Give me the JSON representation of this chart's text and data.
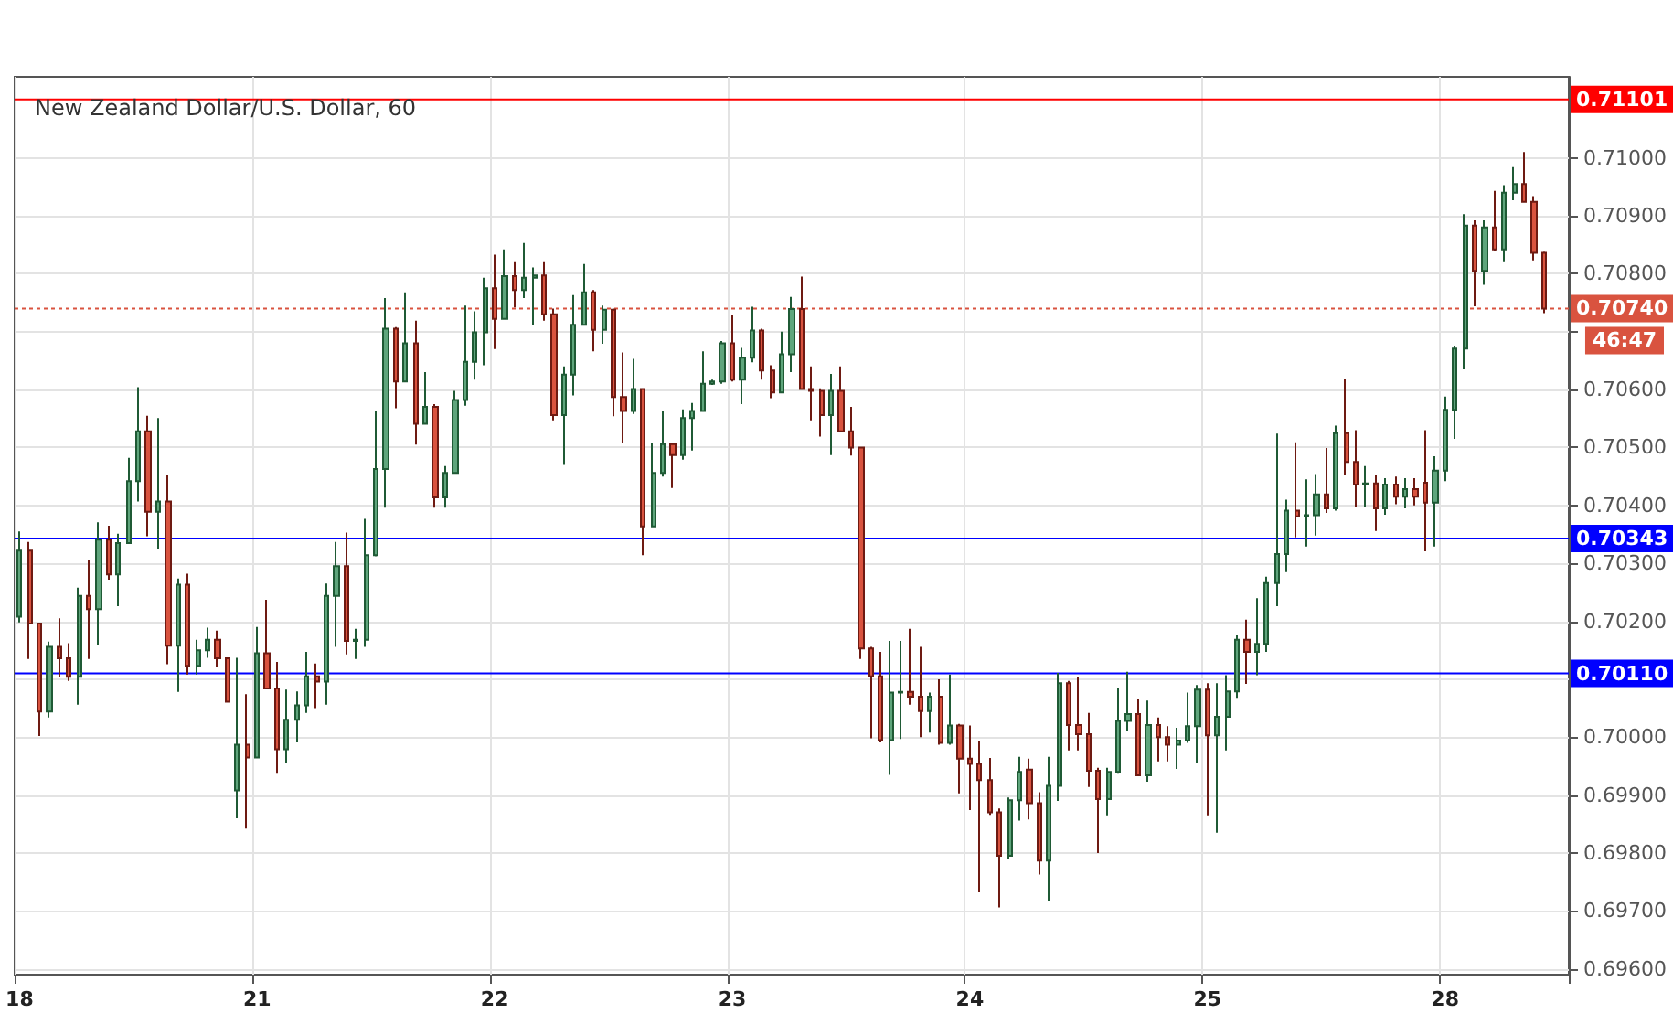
{
  "chart_data": {
    "type": "candlestick",
    "title": "New Zealand Dollar/U.S. Dollar, 60",
    "categories": [
      "18",
      null,
      null,
      null,
      null,
      null,
      null,
      null,
      null,
      null,
      null,
      null,
      null,
      null,
      null,
      null,
      null,
      null,
      null,
      null,
      null,
      null,
      null,
      null,
      "21",
      null,
      null,
      null,
      null,
      null,
      null,
      null,
      null,
      null,
      null,
      null,
      null,
      null,
      null,
      null,
      null,
      null,
      null,
      null,
      null,
      null,
      null,
      null,
      "22",
      null,
      null,
      null,
      null,
      null,
      null,
      null,
      null,
      null,
      null,
      null,
      null,
      null,
      null,
      null,
      null,
      null,
      null,
      null,
      null,
      null,
      null,
      null,
      "23",
      null,
      null,
      null,
      null,
      null,
      null,
      null,
      null,
      null,
      null,
      null,
      null,
      null,
      null,
      null,
      null,
      null,
      null,
      null,
      null,
      null,
      null,
      null,
      "24",
      null,
      null,
      null,
      null,
      null,
      null,
      null,
      null,
      null,
      null,
      null,
      null,
      null,
      null,
      null,
      null,
      null,
      null,
      null,
      null,
      null,
      null,
      null,
      "25",
      null,
      null,
      null,
      null,
      null,
      null,
      null,
      null,
      null,
      null,
      null,
      null,
      null,
      null,
      null,
      null,
      null,
      null,
      null,
      null,
      null,
      null,
      null,
      "28",
      null,
      null,
      null,
      null,
      null,
      null,
      null,
      null,
      null,
      null
    ],
    "ohlc": [
      [
        0.70208,
        0.70355,
        0.70198,
        0.70322
      ],
      [
        0.70322,
        0.70337,
        0.70135,
        0.70196
      ],
      [
        0.70196,
        0.70196,
        0.70002,
        0.70044
      ],
      [
        0.70044,
        0.70165,
        0.70034,
        0.70156
      ],
      [
        0.70156,
        0.70205,
        0.70104,
        0.70136
      ],
      [
        0.70136,
        0.70162,
        0.70097,
        0.70104
      ],
      [
        0.70104,
        0.70258,
        0.70056,
        0.70244
      ],
      [
        0.70244,
        0.70305,
        0.70135,
        0.70221
      ],
      [
        0.70221,
        0.70371,
        0.7016,
        0.70341
      ],
      [
        0.70341,
        0.70365,
        0.70272,
        0.70281
      ],
      [
        0.70281,
        0.70351,
        0.70226,
        0.70335
      ],
      [
        0.70335,
        0.70482,
        0.70335,
        0.70442
      ],
      [
        0.70442,
        0.70604,
        0.70407,
        0.70528
      ],
      [
        0.70528,
        0.70555,
        0.70347,
        0.70389
      ],
      [
        0.70389,
        0.70551,
        0.70324,
        0.70407
      ],
      [
        0.70407,
        0.70453,
        0.70126,
        0.70158
      ],
      [
        0.70158,
        0.70274,
        0.70078,
        0.70263
      ],
      [
        0.70263,
        0.70282,
        0.70108,
        0.70123
      ],
      [
        0.70123,
        0.70168,
        0.70108,
        0.7015
      ],
      [
        0.7015,
        0.70189,
        0.70137,
        0.70168
      ],
      [
        0.70168,
        0.70184,
        0.70121,
        0.70136
      ],
      [
        0.70136,
        0.70136,
        0.70061,
        0.70061
      ],
      [
        0.69908,
        0.70137,
        0.6986,
        0.69987
      ],
      [
        0.69987,
        0.70074,
        0.69842,
        0.69965
      ],
      [
        0.69965,
        0.7019,
        0.69965,
        0.70145
      ],
      [
        0.70145,
        0.70237,
        0.70084,
        0.70084
      ],
      [
        0.70084,
        0.7013,
        0.69937,
        0.69979
      ],
      [
        0.69979,
        0.70082,
        0.69956,
        0.7003
      ],
      [
        0.7003,
        0.70079,
        0.69991,
        0.70055
      ],
      [
        0.70055,
        0.70147,
        0.70042,
        0.70105
      ],
      [
        0.70105,
        0.70127,
        0.7005,
        0.70096
      ],
      [
        0.70096,
        0.70265,
        0.70056,
        0.70244
      ],
      [
        0.70244,
        0.70337,
        0.70156,
        0.70295
      ],
      [
        0.70295,
        0.70353,
        0.70143,
        0.70166
      ],
      [
        0.70166,
        0.70187,
        0.70135,
        0.70168
      ],
      [
        0.70168,
        0.70377,
        0.70156,
        0.70314
      ],
      [
        0.70314,
        0.70564,
        0.70312,
        0.70463
      ],
      [
        0.70463,
        0.70758,
        0.70396,
        0.70705
      ],
      [
        0.70705,
        0.70708,
        0.70568,
        0.70614
      ],
      [
        0.70614,
        0.70768,
        0.70614,
        0.7068
      ],
      [
        0.7068,
        0.70719,
        0.70505,
        0.70541
      ],
      [
        0.70541,
        0.7063,
        0.70541,
        0.7057
      ],
      [
        0.7057,
        0.70575,
        0.70396,
        0.70414
      ],
      [
        0.70414,
        0.70468,
        0.70396,
        0.70456
      ],
      [
        0.70456,
        0.70598,
        0.70456,
        0.70582
      ],
      [
        0.70582,
        0.70745,
        0.70572,
        0.70648
      ],
      [
        0.70648,
        0.70735,
        0.70617,
        0.70699
      ],
      [
        0.70699,
        0.70793,
        0.70642,
        0.70775
      ],
      [
        0.70775,
        0.70833,
        0.7067,
        0.70722
      ],
      [
        0.70722,
        0.70842,
        0.70722,
        0.70796
      ],
      [
        0.70796,
        0.7082,
        0.70742,
        0.70772
      ],
      [
        0.70772,
        0.70853,
        0.70758,
        0.70793
      ],
      [
        0.70793,
        0.70811,
        0.70712,
        0.70797
      ],
      [
        0.70797,
        0.7082,
        0.70719,
        0.7073
      ],
      [
        0.7073,
        0.7074,
        0.70547,
        0.70556
      ],
      [
        0.70556,
        0.7064,
        0.7047,
        0.70626
      ],
      [
        0.70626,
        0.70763,
        0.7059,
        0.70712
      ],
      [
        0.70712,
        0.70817,
        0.70712,
        0.70768
      ],
      [
        0.70768,
        0.70772,
        0.70666,
        0.70703
      ],
      [
        0.70703,
        0.70745,
        0.70679,
        0.70738
      ],
      [
        0.70738,
        0.7074,
        0.70554,
        0.70587
      ],
      [
        0.70587,
        0.70664,
        0.70508,
        0.70563
      ],
      [
        0.70563,
        0.70653,
        0.70558,
        0.70601
      ],
      [
        0.70601,
        0.70601,
        0.70314,
        0.70364
      ],
      [
        0.70364,
        0.70508,
        0.70364,
        0.70456
      ],
      [
        0.70456,
        0.70564,
        0.7045,
        0.70506
      ],
      [
        0.70506,
        0.70506,
        0.7043,
        0.70487
      ],
      [
        0.70487,
        0.70566,
        0.70479,
        0.70551
      ],
      [
        0.70551,
        0.70577,
        0.70495,
        0.70563
      ],
      [
        0.70563,
        0.70666,
        0.70563,
        0.7061
      ],
      [
        0.7061,
        0.70617,
        0.70608,
        0.70614
      ],
      [
        0.70614,
        0.70684,
        0.7061,
        0.7068
      ],
      [
        0.7068,
        0.70729,
        0.70614,
        0.70617
      ],
      [
        0.70617,
        0.70672,
        0.70575,
        0.70655
      ],
      [
        0.70655,
        0.70743,
        0.70647,
        0.70702
      ],
      [
        0.70702,
        0.70705,
        0.70617,
        0.70633
      ],
      [
        0.70633,
        0.70642,
        0.70585,
        0.70595
      ],
      [
        0.70595,
        0.707,
        0.70595,
        0.70661
      ],
      [
        0.70661,
        0.7076,
        0.7063,
        0.70739
      ],
      [
        0.70739,
        0.70795,
        0.70601,
        0.70601
      ],
      [
        0.70601,
        0.7064,
        0.70547,
        0.70598
      ],
      [
        0.70598,
        0.70602,
        0.70519,
        0.70556
      ],
      [
        0.70556,
        0.70627,
        0.70487,
        0.70598
      ],
      [
        0.70598,
        0.7064,
        0.70528,
        0.70528
      ],
      [
        0.70528,
        0.7057,
        0.70486,
        0.705
      ],
      [
        0.705,
        0.705,
        0.70135,
        0.70153
      ],
      [
        0.70153,
        0.70156,
        0.69998,
        0.70105
      ],
      [
        0.70105,
        0.70147,
        0.69991,
        0.69995
      ],
      [
        0.69995,
        0.70166,
        0.69935,
        0.70077
      ],
      [
        0.70077,
        0.70166,
        0.69997,
        0.70078
      ],
      [
        0.70078,
        0.70187,
        0.70056,
        0.7007
      ],
      [
        0.7007,
        0.70156,
        0.7,
        0.70045
      ],
      [
        0.70045,
        0.70077,
        0.70008,
        0.7007
      ],
      [
        0.7007,
        0.701,
        0.69987,
        0.6999
      ],
      [
        0.6999,
        0.70108,
        0.69987,
        0.7002
      ],
      [
        0.7002,
        0.70023,
        0.69903,
        0.69963
      ],
      [
        0.69963,
        0.7002,
        0.69874,
        0.69954
      ],
      [
        0.69954,
        0.69993,
        0.69732,
        0.69926
      ],
      [
        0.69926,
        0.69964,
        0.69866,
        0.6987
      ],
      [
        0.6987,
        0.69877,
        0.69706,
        0.69795
      ],
      [
        0.69795,
        0.69896,
        0.6979,
        0.69891
      ],
      [
        0.69891,
        0.69966,
        0.69856,
        0.6994
      ],
      [
        0.69944,
        0.69963,
        0.69858,
        0.69886
      ],
      [
        0.69886,
        0.69905,
        0.69763,
        0.69787
      ],
      [
        0.69787,
        0.69966,
        0.69718,
        0.69916
      ],
      [
        0.69916,
        0.70111,
        0.6989,
        0.70093
      ],
      [
        0.70093,
        0.70097,
        0.69977,
        0.70021
      ],
      [
        0.70021,
        0.70103,
        0.69977,
        0.70005
      ],
      [
        0.70005,
        0.70042,
        0.69914,
        0.69942
      ],
      [
        0.69942,
        0.69947,
        0.698,
        0.69893
      ],
      [
        0.69893,
        0.69947,
        0.69865,
        0.6994
      ],
      [
        0.6994,
        0.70084,
        0.69937,
        0.70028
      ],
      [
        0.70028,
        0.70113,
        0.7001,
        0.7004
      ],
      [
        0.7004,
        0.70065,
        0.69934,
        0.69934
      ],
      [
        0.69934,
        0.70063,
        0.69923,
        0.70021
      ],
      [
        0.70021,
        0.70034,
        0.69958,
        0.7
      ],
      [
        0.7,
        0.70019,
        0.69958,
        0.69987
      ],
      [
        0.69987,
        0.70016,
        0.69945,
        0.69994
      ],
      [
        0.69994,
        0.70077,
        0.6999,
        0.70019
      ],
      [
        0.70019,
        0.7009,
        0.69956,
        0.70082
      ],
      [
        0.70082,
        0.70093,
        0.69865,
        0.70003
      ],
      [
        0.70003,
        0.70093,
        0.69835,
        0.70035
      ],
      [
        0.70035,
        0.70107,
        0.69977,
        0.70079
      ],
      [
        0.70079,
        0.70177,
        0.70068,
        0.70168
      ],
      [
        0.70168,
        0.70203,
        0.70092,
        0.70147
      ],
      [
        0.70147,
        0.7024,
        0.70107,
        0.70161
      ],
      [
        0.70161,
        0.70277,
        0.70147,
        0.70266
      ],
      [
        0.70266,
        0.70524,
        0.70226,
        0.70316
      ],
      [
        0.70316,
        0.7041,
        0.70285,
        0.70391
      ],
      [
        0.70391,
        0.70509,
        0.70345,
        0.70381
      ],
      [
        0.70381,
        0.70445,
        0.70329,
        0.70383
      ],
      [
        0.70383,
        0.70454,
        0.70348,
        0.70419
      ],
      [
        0.70419,
        0.70499,
        0.70387,
        0.70395
      ],
      [
        0.70395,
        0.70538,
        0.70391,
        0.70525
      ],
      [
        0.70525,
        0.70619,
        0.70452,
        0.70475
      ],
      [
        0.70475,
        0.7053,
        0.70398,
        0.70436
      ],
      [
        0.70436,
        0.70468,
        0.70398,
        0.70438
      ],
      [
        0.70438,
        0.70452,
        0.70356,
        0.70395
      ],
      [
        0.70395,
        0.70447,
        0.70384,
        0.70436
      ],
      [
        0.70436,
        0.7045,
        0.70402,
        0.70415
      ],
      [
        0.70415,
        0.70447,
        0.70395,
        0.70428
      ],
      [
        0.70428,
        0.70447,
        0.704,
        0.70415
      ],
      [
        0.70439,
        0.7053,
        0.70321,
        0.70405
      ],
      [
        0.70405,
        0.70485,
        0.70329,
        0.7046
      ],
      [
        0.7046,
        0.70588,
        0.70442,
        0.70565
      ],
      [
        0.70565,
        0.70676,
        0.70515,
        0.70671
      ],
      [
        0.70671,
        0.70903,
        0.70635,
        0.70883
      ],
      [
        0.70883,
        0.70892,
        0.70744,
        0.70805
      ],
      [
        0.70805,
        0.70892,
        0.70781,
        0.7088
      ],
      [
        0.7088,
        0.70943,
        0.7084,
        0.70842
      ],
      [
        0.70842,
        0.70953,
        0.7082,
        0.7094
      ],
      [
        0.7094,
        0.70984,
        0.70927,
        0.70955
      ],
      [
        0.70955,
        0.7101,
        0.70924,
        0.70924
      ],
      [
        0.70924,
        0.70934,
        0.70823,
        0.70836
      ],
      [
        0.70836,
        0.70838,
        0.70732,
        0.7074
      ]
    ],
    "ylim": [
      0.6959,
      0.7114
    ],
    "yticks": [
      {
        "value": 0.696,
        "label": "0.69600"
      },
      {
        "value": 0.697,
        "label": "0.69700"
      },
      {
        "value": 0.698,
        "label": "0.69800"
      },
      {
        "value": 0.699,
        "label": "0.69900"
      },
      {
        "value": 0.7,
        "label": "0.70000"
      },
      {
        "value": 0.701,
        "label": null
      },
      {
        "value": 0.702,
        "label": "0.70200"
      },
      {
        "value": 0.703,
        "label": "0.70300"
      },
      {
        "value": 0.704,
        "label": "0.70400"
      },
      {
        "value": 0.705,
        "label": "0.70500"
      },
      {
        "value": 0.706,
        "label": "0.70600"
      },
      {
        "value": 0.707,
        "label": null
      },
      {
        "value": 0.708,
        "label": "0.70800"
      },
      {
        "value": 0.709,
        "label": "0.70900"
      },
      {
        "value": 0.71,
        "label": "0.71000"
      }
    ],
    "ref_lines": [
      {
        "axis": "y",
        "value": 0.71101,
        "label": "0.71101",
        "color": "#ff0000"
      },
      {
        "axis": "y",
        "value": 0.70343,
        "label": "0.70343",
        "color": "#0000ff"
      },
      {
        "axis": "y",
        "value": 0.7011,
        "label": "0.70110",
        "color": "#0000ff"
      },
      {
        "axis": "y",
        "value": 0.7074,
        "label": "0.70740",
        "color": "#d9533f",
        "line_style": "dotted"
      }
    ],
    "annotations": [
      "46:47"
    ],
    "grid": true
  }
}
